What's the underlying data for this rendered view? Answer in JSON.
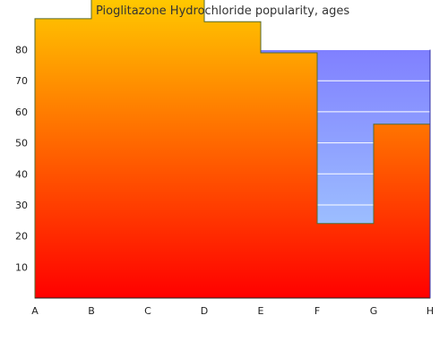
{
  "chart_data": {
    "type": "area",
    "title": "Pioglitazone Hydrochloride popularity, ages",
    "xlabel": "",
    "ylabel": "",
    "categories": [
      "A",
      "B",
      "C",
      "D",
      "E",
      "F",
      "G",
      "H"
    ],
    "step_values": [
      90,
      98,
      98,
      89,
      79,
      24,
      56
    ],
    "background_band": {
      "from": "E",
      "to": "H",
      "low": 0,
      "high": 80
    },
    "ylim": [
      0,
      96
    ],
    "yticks": [
      10,
      20,
      30,
      40,
      50,
      60,
      70,
      80
    ],
    "grid": "horizontal",
    "legend": "none",
    "colors": {
      "fill_top": "#ffcc00",
      "fill_bottom": "#ff0000",
      "band_top": "#8080ff",
      "band_bottom": "#a8d8ff",
      "outline": "#556b2f",
      "axis": "#222222",
      "grid": "#ffffff"
    }
  }
}
